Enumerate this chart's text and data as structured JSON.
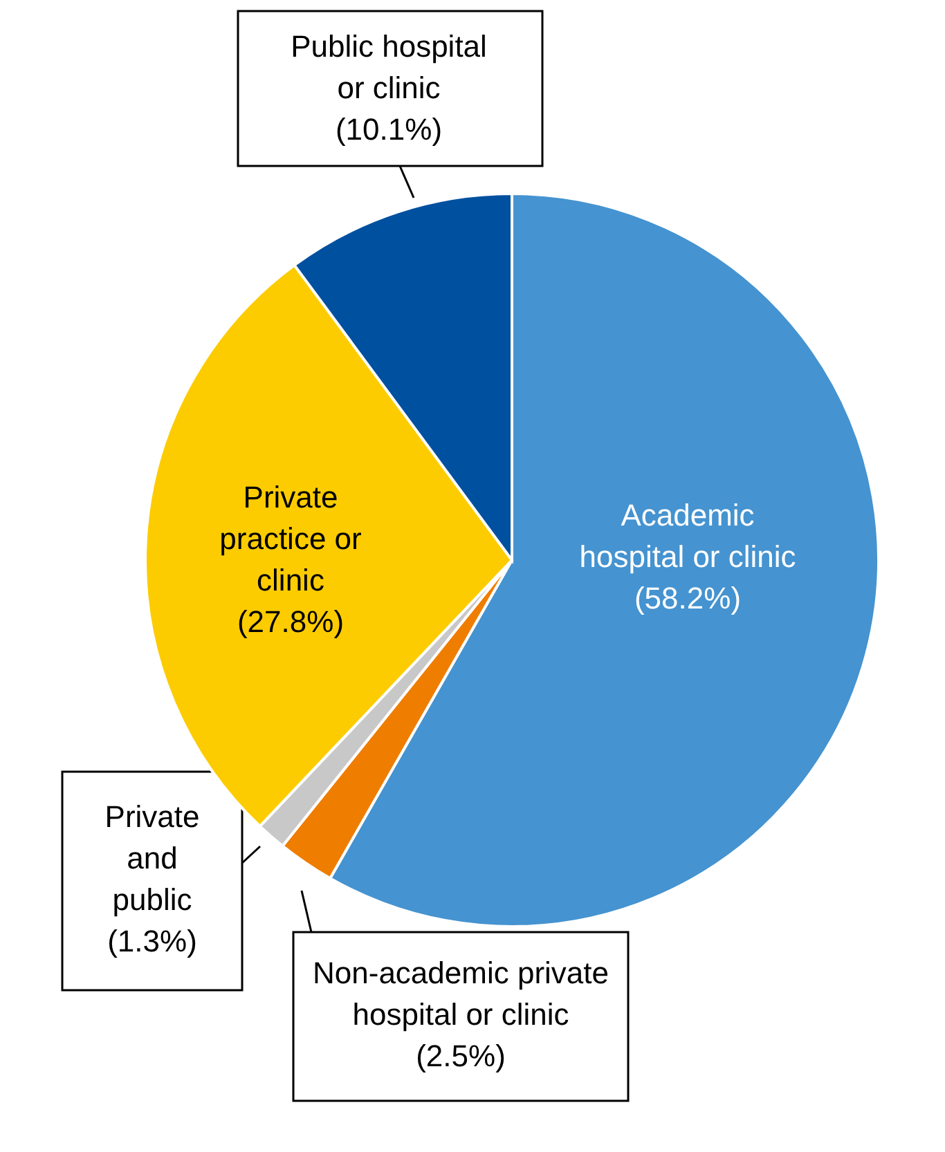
{
  "chart_data": {
    "type": "pie",
    "categories": [
      "Academic hospital or clinic",
      "Non-academic private hospital or clinic",
      "Private and public",
      "Private practice or clinic",
      "Public hospital or clinic"
    ],
    "values": [
      58.2,
      2.5,
      1.3,
      27.8,
      10.1
    ],
    "colors": [
      "#4593d0",
      "#ef7d00",
      "#c8c8c8",
      "#fccc00",
      "#0050a0"
    ],
    "value_labels": [
      "(58.2%)",
      "(2.5%)",
      "(1.3%)",
      "(27.8%)",
      "(10.1%)"
    ]
  }
}
